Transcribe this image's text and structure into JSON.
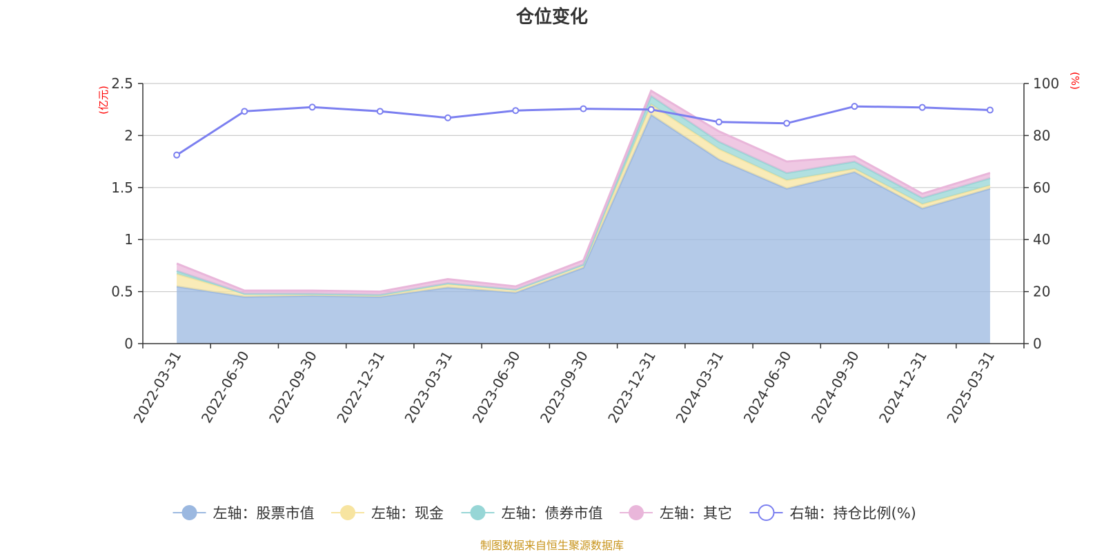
{
  "chart_data": {
    "type": "area",
    "title": "仓位变化",
    "left_axis_unit": "(亿元)",
    "right_axis_unit": "(%)",
    "categories": [
      "2022-03-31",
      "2022-06-30",
      "2022-09-30",
      "2022-12-31",
      "2023-03-31",
      "2023-06-30",
      "2023-09-30",
      "2023-12-31",
      "2024-03-31",
      "2024-06-30",
      "2024-09-30",
      "2024-12-31",
      "2025-03-31"
    ],
    "left_ylim": [
      0,
      2.5
    ],
    "left_ticks": [
      "0",
      "0.5",
      "1",
      "1.5",
      "2",
      "2.5"
    ],
    "right_ylim": [
      0,
      100
    ],
    "right_ticks": [
      "0",
      "20",
      "40",
      "60",
      "80",
      "100"
    ],
    "stacked": true,
    "grid": true,
    "legend_position": "bottom",
    "series": [
      {
        "name": "左轴：股票市值",
        "axis": "left",
        "style": "area",
        "color": "#9bb8e0",
        "values": [
          0.55,
          0.45,
          0.46,
          0.45,
          0.54,
          0.49,
          0.73,
          2.2,
          1.77,
          1.49,
          1.65,
          1.3,
          1.49
        ]
      },
      {
        "name": "左轴：现金",
        "axis": "left",
        "style": "area",
        "color": "#f7e4a0",
        "values": [
          0.12,
          0.03,
          0.02,
          0.02,
          0.03,
          0.03,
          0.03,
          0.1,
          0.1,
          0.08,
          0.03,
          0.04,
          0.03
        ]
      },
      {
        "name": "左轴：债券市值",
        "axis": "left",
        "style": "area",
        "color": "#97d6d6",
        "values": [
          0.03,
          0.0,
          0.0,
          0.0,
          0.01,
          0.0,
          0.0,
          0.08,
          0.07,
          0.07,
          0.07,
          0.06,
          0.07
        ]
      },
      {
        "name": "左轴：其它",
        "axis": "left",
        "style": "area",
        "color": "#e9b6da",
        "values": [
          0.07,
          0.03,
          0.03,
          0.03,
          0.04,
          0.03,
          0.04,
          0.05,
          0.1,
          0.11,
          0.05,
          0.04,
          0.05
        ]
      },
      {
        "name": "右轴：持仓比例(%)",
        "axis": "right",
        "style": "line",
        "color": "#7b7ff0",
        "values": [
          72.5,
          89.3,
          90.9,
          89.3,
          86.8,
          89.6,
          90.3,
          90.0,
          85.2,
          84.7,
          91.2,
          90.8,
          89.8
        ]
      }
    ],
    "source_note": "制图数据来自恒生聚源数据库"
  }
}
